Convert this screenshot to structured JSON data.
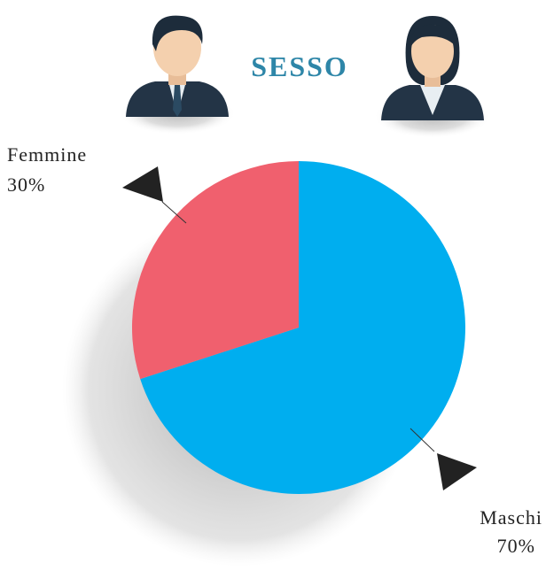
{
  "chart_data": {
    "type": "pie",
    "title": "SESSO",
    "categories": [
      "Maschi",
      "Femmine"
    ],
    "values": [
      70,
      30
    ],
    "value_labels": [
      "70%",
      "30%"
    ],
    "colors": [
      "#00aeef",
      "#f0606e"
    ]
  }
}
